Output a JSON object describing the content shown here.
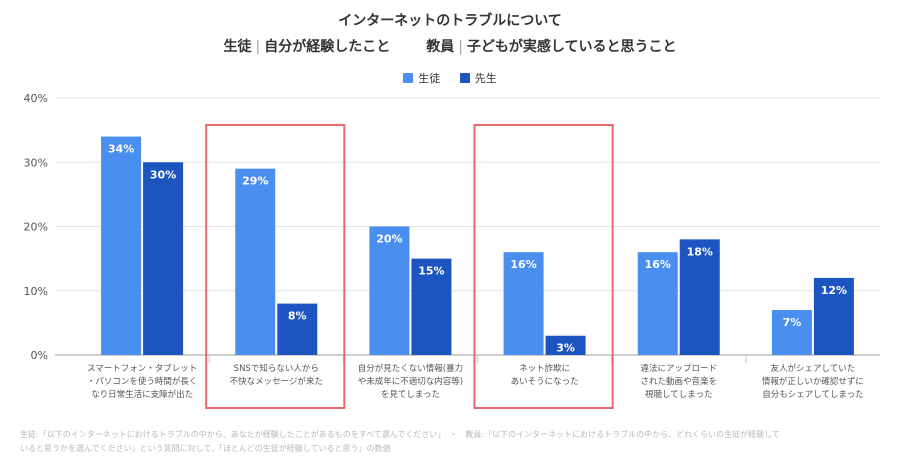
{
  "chart_data": {
    "type": "bar",
    "title": "インターネットのトラブルについて",
    "subtitle_left": "生徒",
    "subtitle_left_desc": "自分が経験したこと",
    "subtitle_right": "教員",
    "subtitle_right_desc": "子どもが実感していると思うこと",
    "categories": [
      [
        "スマートフォン・タブレット",
        "・パソコンを使う時間が長く",
        "なり日常生活に支障が出た"
      ],
      [
        "SNSで知らない人から",
        "不快なメッセージが来た"
      ],
      [
        "自分が見たくない情報(暴力",
        "や未成年に不適切な内容等)",
        "を見てしまった"
      ],
      [
        "ネット詐欺に",
        "あいそうになった"
      ],
      [
        "違法にアップロード",
        "された動画や音楽を",
        "視聴してしまった"
      ],
      [
        "友人がシェアしていた",
        "情報が正しいか確認せずに",
        "自分もシェアしてしまった"
      ]
    ],
    "series": [
      {
        "name": "生徒",
        "color": "#4a8ef0",
        "values": [
          34,
          29,
          20,
          16,
          16,
          7
        ]
      },
      {
        "name": "先生",
        "color": "#1c55bf",
        "values": [
          30,
          8,
          15,
          3,
          18,
          12
        ]
      }
    ],
    "value_suffix": "%",
    "yticks": [
      "0%",
      "10%",
      "20%",
      "30%",
      "40%"
    ],
    "ylim": [
      0,
      40
    ],
    "highlighted_categories": [
      1,
      3
    ],
    "highlight_color": "#e8696c",
    "grid": true,
    "legend_position": "top-center"
  },
  "footnote": {
    "line1": "生徒:「以下のインターネットにおけるトラブルの中から、あなたが経験したことがあるものをすべて選んでください」　・　教員:「以下のインターネットにおけるトラブルの中から、どれくらいの生徒が経験して",
    "line2": "いると思うかを選んでください」という質問に対して、「ほとんどの生徒が経験していると思う」の数値"
  }
}
